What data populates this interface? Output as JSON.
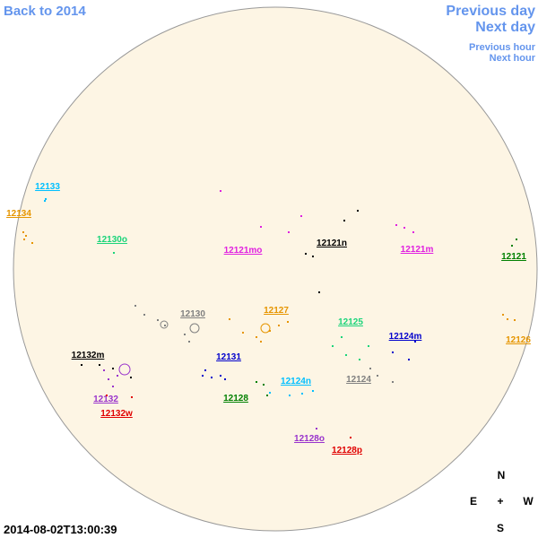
{
  "nav": {
    "back": "Back to 2014",
    "previous_day": "Previous day",
    "next_day": "Next day",
    "previous_hour": "Previous hour",
    "next_hour": "Next hour"
  },
  "timestamp": "2014-08-02T13:00:39",
  "compass": {
    "north": "N",
    "east": "E",
    "center": "+",
    "west": "W",
    "south": "S"
  },
  "regions": [
    {
      "label": "12133",
      "color": "#00bfff"
    },
    {
      "label": "12134",
      "color": "#e69500"
    },
    {
      "label": "12130o",
      "color": "#1bd47a"
    },
    {
      "label": "12121mo",
      "color": "#e020e0"
    },
    {
      "label": "12121n",
      "color": "#000000"
    },
    {
      "label": "12121m",
      "color": "#e020e0"
    },
    {
      "label": "12121",
      "color": "#008000"
    },
    {
      "label": "12130",
      "color": "#808080"
    },
    {
      "label": "12127",
      "color": "#e69500"
    },
    {
      "label": "12125",
      "color": "#1bd47a"
    },
    {
      "label": "12124m",
      "color": "#0000cc"
    },
    {
      "label": "12126",
      "color": "#e69500"
    },
    {
      "label": "12132m",
      "color": "#000000"
    },
    {
      "label": "12131",
      "color": "#0000cc"
    },
    {
      "label": "12124n",
      "color": "#00bfff"
    },
    {
      "label": "12124",
      "color": "#808080"
    },
    {
      "label": "12132",
      "color": "#9933cc"
    },
    {
      "label": "12128",
      "color": "#008000"
    },
    {
      "label": "12132w",
      "color": "#e00000"
    },
    {
      "label": "12128o",
      "color": "#9933cc"
    },
    {
      "label": "12128p",
      "color": "#e00000"
    }
  ]
}
